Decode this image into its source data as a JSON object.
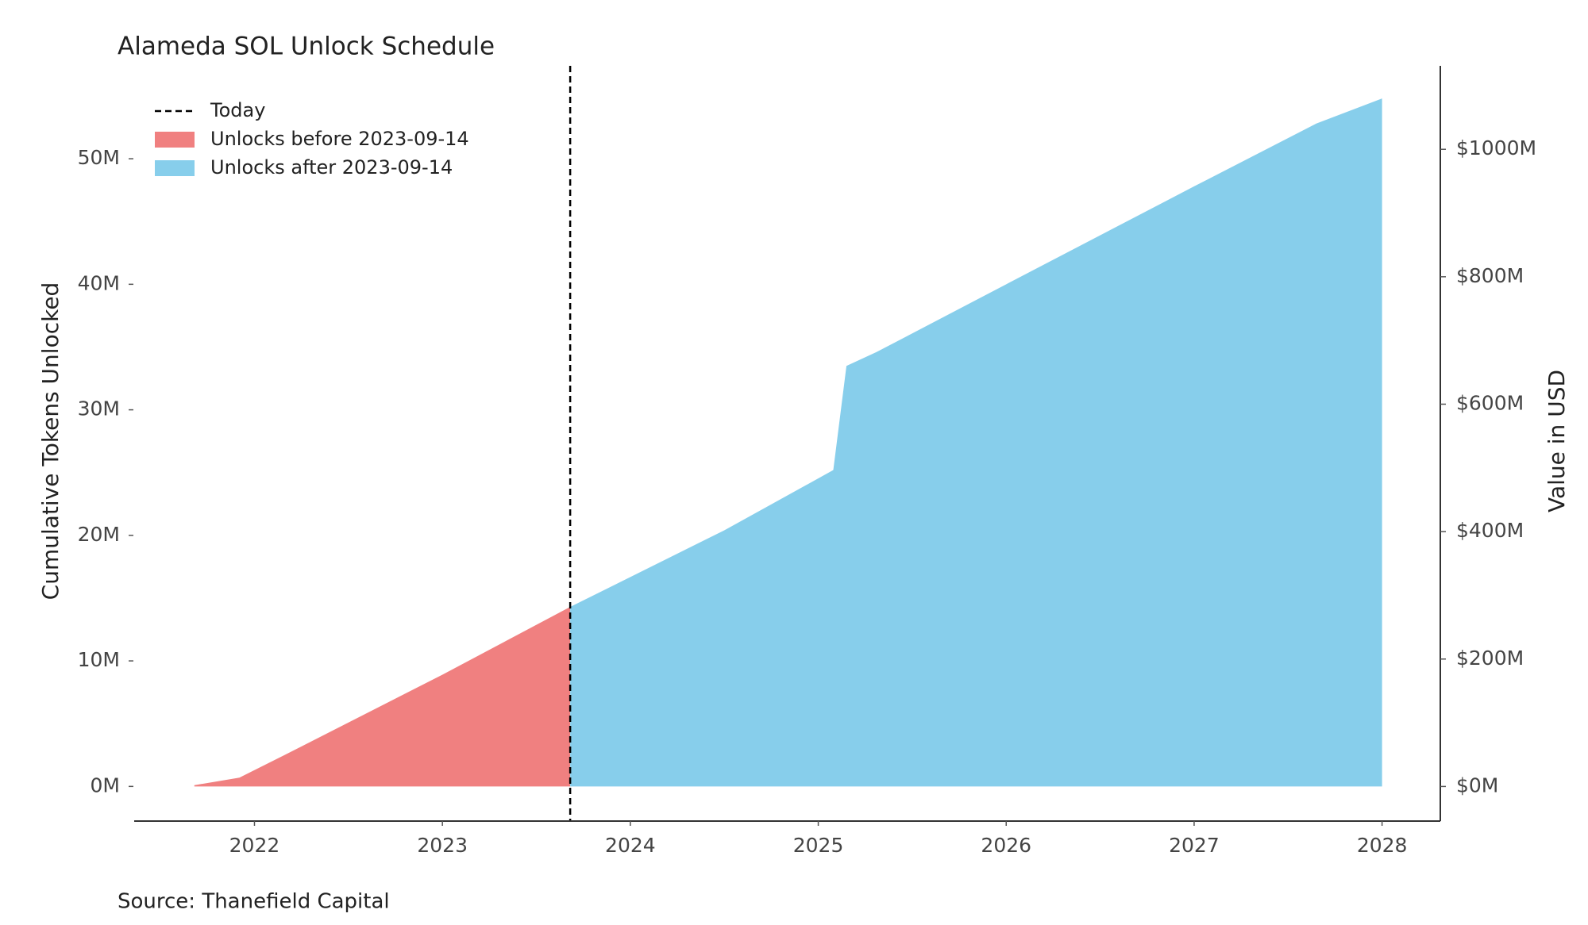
{
  "chart_data": {
    "type": "area",
    "title": "Alameda SOL Unlock Schedule",
    "source": "Source: Thanefield Capital",
    "ylabel": "Cumulative Tokens Unlocked",
    "y2label": "Value in USD",
    "today": {
      "name": "Today",
      "x": 2023.68,
      "color": "#000000"
    },
    "series": [
      {
        "name": "Unlocks before 2023-09-14",
        "color": "#f08080",
        "x": [
          2021.68,
          2021.92,
          2022.16,
          2023.0,
          2023.68
        ],
        "values": [
          0.1,
          0.7,
          2.5,
          8.9,
          14.3
        ]
      },
      {
        "name": "Unlocks after 2023-09-14",
        "color": "#87ceeb",
        "x": [
          2023.68,
          2024.5,
          2025.08,
          2025.15,
          2025.31,
          2026.0,
          2027.0,
          2027.65,
          2028.0
        ],
        "values": [
          14.3,
          20.4,
          25.2,
          33.5,
          34.6,
          40.0,
          47.8,
          52.8,
          54.8
        ]
      }
    ],
    "xlim": [
      2021.36,
      2028.31
    ],
    "xticks": [
      2022,
      2023,
      2024,
      2025,
      2026,
      2027,
      2028
    ],
    "ylim": [
      -2.76,
      57.4
    ],
    "yticks": [
      {
        "value": 0,
        "label": "0M"
      },
      {
        "value": 10,
        "label": "10M"
      },
      {
        "value": 20,
        "label": "20M"
      },
      {
        "value": 30,
        "label": "30M"
      },
      {
        "value": 40,
        "label": "40M"
      },
      {
        "value": 50,
        "label": "50M"
      }
    ],
    "y2lim": [
      -54.3,
      1131
    ],
    "y2ticks": [
      {
        "value": 0,
        "label": "$0M"
      },
      {
        "value": 200,
        "label": "$200M"
      },
      {
        "value": 400,
        "label": "$400M"
      },
      {
        "value": 600,
        "label": "$600M"
      },
      {
        "value": 800,
        "label": "$800M"
      },
      {
        "value": 1000,
        "label": "$1000M"
      }
    ],
    "legend": "upper left"
  }
}
